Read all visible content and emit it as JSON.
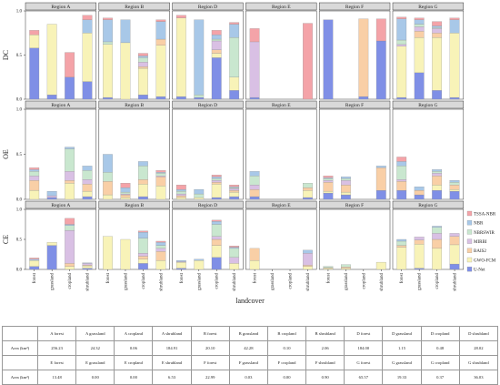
{
  "chart_data": {
    "type": "bar",
    "stacked": true,
    "xlabel": "landcover",
    "legend_position": "right",
    "regions": [
      "Region A",
      "Region B",
      "Region D",
      "Region E",
      "Region F",
      "Region G"
    ],
    "categories": [
      "forest",
      "grassland",
      "cropland",
      "shrubland"
    ],
    "series_names": [
      "TSSA-NBR",
      "NBR",
      "NBRSWIR",
      "MIRBI",
      "BAIS2",
      "GWO-FCM",
      "U-Net"
    ],
    "colors": [
      "#f4a3a8",
      "#a8c8e8",
      "#c9e7cf",
      "#d9c0e4",
      "#f9cfa6",
      "#f8f3b8",
      "#7f8fe6"
    ],
    "rows": [
      {
        "metric": "DC",
        "ylim": [
          0,
          1.0
        ],
        "ticks": [
          "0.0",
          "0.5",
          "1.0"
        ],
        "data": [
          [
            [
              0.05,
              0,
              0,
              0,
              0,
              0.15,
              0.58
            ],
            [
              0,
              0,
              0,
              0,
              0,
              0.8,
              0.05
            ],
            [
              0.28,
              0,
              0,
              0,
              0,
              0,
              0.25
            ],
            [
              0.05,
              0.15,
              0,
              0,
              0,
              0.55,
              0.2
            ]
          ],
          [
            [
              0.02,
              0.25,
              0.03,
              0,
              0,
              0.6,
              0.02
            ],
            [
              0,
              0.26,
              0,
              0,
              0,
              0.64,
              0
            ],
            [
              0.03,
              0.02,
              0.05,
              0.05,
              0.02,
              0.3,
              0.05
            ],
            [
              0.02,
              0.2,
              0,
              0,
              0.07,
              0.58,
              0.03
            ]
          ],
          [
            [
              0.03,
              0,
              0,
              0,
              0,
              0.89,
              0.03
            ],
            [
              0,
              0.85,
              0.03,
              0,
              0,
              0,
              0.02
            ],
            [
              0.05,
              0.05,
              0.02,
              0.1,
              0.04,
              0.05,
              0.47
            ],
            [
              0.02,
              0.15,
              0.45,
              0,
              0,
              0.15,
              0.1
            ]
          ],
          [
            [
              0.15,
              0,
              0,
              0.63,
              0,
              0,
              0.02
            ],
            [
              0,
              0,
              0,
              0,
              0,
              0,
              0
            ],
            [
              0,
              0,
              0,
              0,
              0,
              0,
              0
            ],
            [
              0.86,
              0,
              0,
              0,
              0,
              0,
              0
            ]
          ],
          [
            [
              0,
              0,
              0,
              0,
              0,
              0,
              0.9
            ],
            [
              0,
              0,
              0,
              0,
              0,
              0,
              0
            ],
            [
              0,
              0,
              0,
              0,
              0.88,
              0,
              0.03
            ],
            [
              0.25,
              0,
              0,
              0,
              0,
              0,
              0.66
            ]
          ],
          [
            [
              0.02,
              0.24,
              0.05,
              0.02,
              0,
              0.58,
              0.02
            ],
            [
              0.02,
              0.05,
              0.03,
              0.05,
              0.07,
              0.4,
              0.3
            ],
            [
              0.05,
              0.02,
              0.01,
              0.05,
              0.05,
              0.6,
              0.1
            ],
            [
              0.02,
              0.15,
              0,
              0,
              0,
              0.73,
              0.02
            ]
          ]
        ]
      },
      {
        "metric": "OE",
        "ylim": [
          0,
          1.0
        ],
        "ticks": [
          "0.0",
          "0.5",
          "1.0"
        ],
        "data": [
          [
            [
              0.02,
              0.02,
              0.05,
              0.05,
              0.11,
              0.1,
              0
            ],
            [
              0,
              0.05,
              0,
              0.02,
              0,
              0,
              0.02
            ],
            [
              0,
              0.02,
              0.25,
              0.1,
              0.03,
              0.18,
              0
            ],
            [
              0,
              0.05,
              0.1,
              0.05,
              0.08,
              0.06,
              0.03
            ]
          ],
          [
            [
              0,
              0.2,
              0.1,
              0,
              0.15,
              0.05,
              0
            ],
            [
              0.05,
              0.05,
              0.02,
              0.01,
              0.03,
              0.02,
              0
            ],
            [
              0,
              0.05,
              0.15,
              0,
              0.05,
              0.14,
              0.03
            ],
            [
              0.02,
              0.01,
              0.03,
              0.01,
              0.1,
              0.15,
              0
            ]
          ],
          [
            [
              0.05,
              0.02,
              0.03,
              0.02,
              0.02,
              0.02,
              0
            ],
            [
              0,
              0.05,
              0.04,
              0,
              0,
              0.02,
              0
            ],
            [
              0.02,
              0.02,
              0.02,
              0.02,
              0.02,
              0.15,
              0.02
            ],
            [
              0.02,
              0.01,
              0.01,
              0.02,
              0.02,
              0.05,
              0.03
            ]
          ],
          [
            [
              0,
              0.05,
              0.1,
              0.05,
              0.08,
              0,
              0.03
            ],
            [
              0,
              0,
              0,
              0,
              0,
              0,
              0
            ],
            [
              0,
              0,
              0,
              0,
              0,
              0,
              0
            ],
            [
              0,
              0,
              0.05,
              0,
              0.03,
              0.08,
              0.02
            ]
          ],
          [
            [
              0.02,
              0.01,
              0.02,
              0.02,
              0.1,
              0.02,
              0.07
            ],
            [
              0,
              0.02,
              0.02,
              0.05,
              0.08,
              0.03,
              0.05
            ],
            [
              0,
              0,
              0,
              0,
              0,
              0,
              0
            ],
            [
              0,
              0.02,
              0,
              0,
              0.25,
              0,
              0.1
            ]
          ],
          [
            [
              0.05,
              0.05,
              0.15,
              0.02,
              0.1,
              0,
              0.1
            ],
            [
              0,
              0.04,
              0,
              0,
              0.05,
              0,
              0.05
            ],
            [
              0,
              0.02,
              0.02,
              0.03,
              0.1,
              0.06,
              0.1
            ],
            [
              0,
              0.02,
              0.03,
              0,
              0.05,
              0.02,
              0.09
            ]
          ]
        ]
      },
      {
        "metric": "CE",
        "ylim": [
          0,
          1.0
        ],
        "ticks": [
          "0.0",
          "0.5",
          "1.0"
        ],
        "data": [
          [
            [
              0.02,
              0.02,
              0,
              0,
              0,
              0.1,
              0.05
            ],
            [
              0,
              0,
              0,
              0,
              0,
              0.05,
              0.4
            ],
            [
              0.1,
              0.02,
              0.08,
              0.55,
              0.05,
              0.05,
              0
            ],
            [
              0,
              0.01,
              0,
              0.03,
              0.01,
              0.04,
              0.02
            ]
          ],
          [
            [
              0,
              0,
              0,
              0,
              0,
              0.55,
              0
            ],
            [
              0,
              0,
              0,
              0,
              0,
              0.5,
              0
            ],
            [
              0.02,
              0.1,
              0.25,
              0.05,
              0.05,
              0.07,
              0.1
            ],
            [
              0.02,
              0.05,
              0.05,
              0.05,
              0.15,
              0.15,
              0
            ]
          ],
          [
            [
              0,
              0.02,
              0,
              0.01,
              0,
              0.1,
              0.02
            ],
            [
              0,
              0.02,
              0,
              0,
              0,
              0.15,
              0
            ],
            [
              0.02,
              0.05,
              0.2,
              0.05,
              0.1,
              0.2,
              0.2
            ],
            [
              0.02,
              0.02,
              0.15,
              0.1,
              0,
              0.1,
              0
            ]
          ],
          [
            [
              0,
              0,
              0,
              0,
              0.2,
              0.15,
              0
            ],
            [
              0,
              0,
              0,
              0,
              0,
              0,
              0
            ],
            [
              0,
              0,
              0,
              0,
              0,
              0,
              0
            ],
            [
              0,
              0.05,
              0,
              0.2,
              0.02,
              0.05,
              0
            ]
          ],
          [
            [
              0,
              0,
              0.02,
              0,
              0.01,
              0.02,
              0
            ],
            [
              0,
              0,
              0.04,
              0,
              0.02,
              0.02,
              0
            ],
            [
              0,
              0,
              0,
              0,
              0,
              0,
              0
            ],
            [
              0,
              0,
              0,
              0,
              0,
              0.12,
              0
            ]
          ],
          [
            [
              0,
              0.03,
              0.07,
              0,
              0.03,
              0.37,
              0
            ],
            [
              0,
              0,
              0,
              0.05,
              0.07,
              0.4,
              0.02
            ],
            [
              0,
              0.02,
              0.1,
              0.1,
              0.15,
              0.35,
              0
            ],
            [
              0,
              0,
              0,
              0.05,
              0.14,
              0.32,
              0.09
            ]
          ]
        ]
      }
    ]
  },
  "table": {
    "unit_label": "Area (km²)",
    "rows": [
      {
        "headers": [
          "A forest",
          "A grassland",
          "A cropland",
          "A shrubland",
          "B forest",
          "B grassland",
          "B cropland",
          "B shrubland",
          "D forest",
          "D grassland",
          "D cropland",
          "D shrubland"
        ],
        "values": [
          "256.23",
          "24.32",
          "0.06",
          "184.91",
          "20.10",
          "42.28",
          "0.10",
          "2.06",
          "184.00",
          "1.15",
          "0.48",
          "28.02"
        ]
      },
      {
        "headers": [
          "E forest",
          "E grassland",
          "E cropland",
          "E shrubland",
          "F forest",
          "F grassland",
          "F cropland",
          "F shrubland",
          "G forest",
          "G grassland",
          "G cropland",
          "G shrubland"
        ],
        "values": [
          "13.48",
          "0.00",
          "0.00",
          "6.53",
          "22.99",
          "0.03",
          "0.00",
          "0.90",
          "65.57",
          "19.33",
          "0.37",
          "36.03"
        ]
      }
    ]
  }
}
